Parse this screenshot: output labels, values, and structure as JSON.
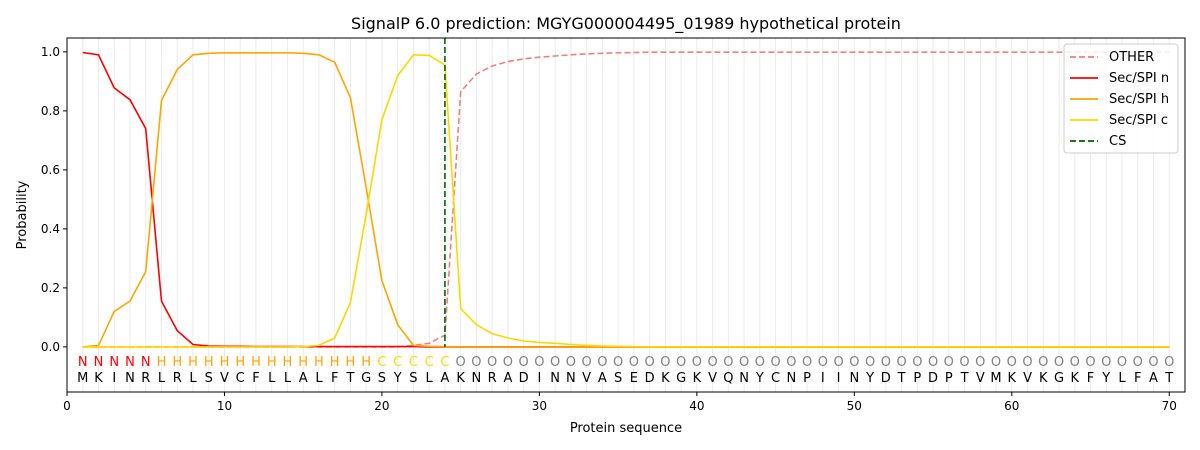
{
  "chart_data": {
    "type": "line",
    "title": "SignalP 6.0 prediction: MGYG000004495_01989 hypothetical protein",
    "xlabel": "Protein sequence",
    "ylabel": "Probability",
    "xlim": [
      0,
      71
    ],
    "ylim": [
      -0.153,
      1.047
    ],
    "xticks": [
      0,
      10,
      20,
      30,
      40,
      50,
      60,
      70
    ],
    "yticks": [
      0.0,
      0.2,
      0.4,
      0.6,
      0.8,
      1.0
    ],
    "xtick_labels": [
      "0",
      "10",
      "20",
      "30",
      "40",
      "50",
      "60",
      "70"
    ],
    "ytick_labels": [
      "0.0",
      "0.2",
      "0.4",
      "0.6",
      "0.8",
      "1.0"
    ],
    "grid": "vertical lines at each residue",
    "legend_position": "top-right",
    "sequence": "MKINRLRLSVCFLLALFTGSYSLAKNRADINNVASEDKGKVQNYCNPIINYDTPDPTVMKVKGKFYLFAT",
    "region_labels": "NNNNNHHHHHHHHHHHHHHCCCCCOOOOOOOOOOOOOOOOOOOOOOOOOOOOOOOOOOOOOOOOOOOOOO",
    "region_label_colors": {
      "N": "#ff0000",
      "H": "#ffa500",
      "C": "#ffd700",
      "O": "#808080"
    },
    "cleavage_site": 24,
    "series": [
      {
        "name": "OTHER",
        "color": "#f08080",
        "dash": "dashed",
        "values": [
          0,
          0,
          0,
          0,
          0,
          0,
          0,
          0,
          0,
          0,
          0,
          0,
          0,
          0,
          0,
          0,
          0,
          0,
          0,
          0,
          0,
          0.005,
          0.012,
          0.04,
          0.865,
          0.925,
          0.952,
          0.967,
          0.976,
          0.982,
          0.986,
          0.99,
          0.993,
          0.995,
          0.997,
          0.998,
          0.999,
          0.999,
          0.999,
          0.999,
          0.999,
          0.999,
          0.999,
          0.999,
          0.999,
          0.999,
          0.999,
          0.999,
          0.999,
          0.999,
          0.999,
          0.999,
          0.999,
          0.999,
          0.999,
          0.999,
          0.999,
          0.999,
          0.999,
          0.999,
          0.999,
          0.999,
          0.999,
          0.999,
          0.999,
          0.999,
          0.999,
          0.999,
          0.999,
          0.999
        ]
      },
      {
        "name": "Sec/SPI n",
        "color": "#ff0000",
        "dash": "solid",
        "values": [
          0.998,
          0.99,
          0.878,
          0.838,
          0.74,
          0.155,
          0.055,
          0.008,
          0.003,
          0.002,
          0.002,
          0.001,
          0.001,
          0.001,
          0.001,
          0.001,
          0.001,
          0.001,
          0.001,
          0.001,
          0.001,
          0.001,
          0,
          0,
          0,
          0,
          0,
          0,
          0,
          0,
          0,
          0,
          0,
          0,
          0,
          0,
          0,
          0,
          0,
          0,
          0,
          0,
          0,
          0,
          0,
          0,
          0,
          0,
          0,
          0,
          0,
          0,
          0,
          0,
          0,
          0,
          0,
          0,
          0,
          0,
          0,
          0,
          0,
          0,
          0,
          0,
          0,
          0,
          0,
          0
        ]
      },
      {
        "name": "Sec/SPI h",
        "color": "#ffa500",
        "dash": "solid",
        "values": [
          0,
          0.005,
          0.12,
          0.155,
          0.255,
          0.835,
          0.94,
          0.99,
          0.995,
          0.997,
          0.997,
          0.997,
          0.997,
          0.997,
          0.995,
          0.99,
          0.965,
          0.845,
          0.54,
          0.225,
          0.075,
          0.005,
          0.002,
          0.001,
          0,
          0,
          0,
          0,
          0,
          0,
          0,
          0,
          0,
          0,
          0,
          0,
          0,
          0,
          0,
          0,
          0,
          0,
          0,
          0,
          0,
          0,
          0,
          0,
          0,
          0,
          0,
          0,
          0,
          0,
          0,
          0,
          0,
          0,
          0,
          0,
          0,
          0,
          0,
          0,
          0,
          0,
          0,
          0,
          0,
          0
        ]
      },
      {
        "name": "Sec/SPI c",
        "color": "#ffd700",
        "dash": "solid",
        "values": [
          0,
          0,
          0,
          0,
          0,
          0,
          0,
          0,
          0,
          0,
          0,
          0,
          0,
          0,
          0.001,
          0.005,
          0.03,
          0.15,
          0.45,
          0.77,
          0.92,
          0.99,
          0.988,
          0.955,
          0.13,
          0.075,
          0.045,
          0.03,
          0.02,
          0.015,
          0.012,
          0.008,
          0.005,
          0.003,
          0.002,
          0.001,
          0,
          0,
          0,
          0,
          0,
          0,
          0,
          0,
          0,
          0,
          0,
          0,
          0,
          0,
          0,
          0,
          0,
          0,
          0,
          0,
          0,
          0,
          0,
          0,
          0,
          0,
          0,
          0,
          0,
          0,
          0,
          0,
          0,
          0
        ]
      },
      {
        "name": "CS",
        "color": "#006400",
        "dash": "dashed",
        "values": []
      }
    ]
  }
}
